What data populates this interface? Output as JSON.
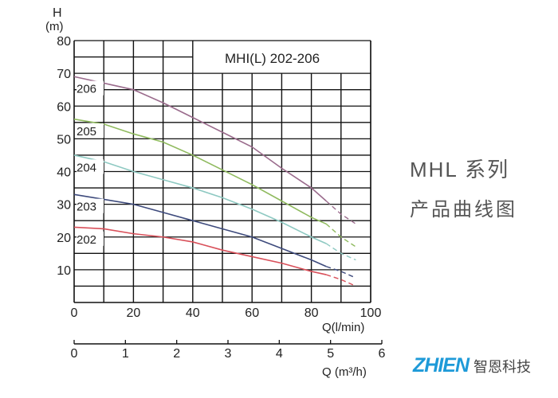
{
  "chart_data": {
    "type": "line",
    "title": "MHI(L) 202-206",
    "ylabel": "H",
    "yunit": "(m)",
    "xlabel": "Q(l/min)",
    "xlabel2": "Q (m³/h)",
    "xlim": [
      0,
      100
    ],
    "ylim": [
      0,
      80
    ],
    "x2lim": [
      0,
      6
    ],
    "xticks": [
      "0",
      "20",
      "40",
      "60",
      "80",
      "100"
    ],
    "yticks": [
      "10",
      "20",
      "30",
      "40",
      "50",
      "60",
      "70",
      "80"
    ],
    "x2ticks": [
      "0",
      "1",
      "2",
      "3",
      "4",
      "5",
      "6"
    ],
    "grid": true,
    "series": [
      {
        "name": "206",
        "color": "#9a6b8c",
        "x": [
          0,
          10,
          20,
          30,
          40,
          50,
          60,
          70,
          80,
          85,
          90,
          95
        ],
        "y": [
          69,
          67,
          65,
          61,
          56.5,
          52,
          47.5,
          41,
          35,
          31,
          27,
          24
        ]
      },
      {
        "name": "205",
        "color": "#8fba5e",
        "x": [
          0,
          10,
          20,
          30,
          40,
          50,
          60,
          70,
          80,
          85,
          90,
          95
        ],
        "y": [
          56,
          54.5,
          51.5,
          49,
          45,
          40.5,
          36,
          31,
          26,
          24,
          20,
          17
        ]
      },
      {
        "name": "204",
        "color": "#8ec9c2",
        "x": [
          0,
          10,
          20,
          30,
          40,
          50,
          60,
          70,
          80,
          85,
          90,
          95
        ],
        "y": [
          45,
          43,
          40,
          37.5,
          35,
          32,
          28.5,
          24.5,
          20,
          18,
          15,
          13
        ]
      },
      {
        "name": "203",
        "color": "#3d4a7c",
        "x": [
          0,
          10,
          20,
          30,
          40,
          50,
          60,
          70,
          80,
          85,
          90,
          95
        ],
        "y": [
          33,
          31.5,
          30,
          27.5,
          25,
          22.5,
          20,
          16.5,
          13,
          11,
          9.5,
          7.5
        ]
      },
      {
        "name": "202",
        "color": "#d9505a",
        "x": [
          0,
          10,
          20,
          30,
          40,
          50,
          60,
          70,
          80,
          85,
          90,
          95
        ],
        "y": [
          23,
          22.5,
          21,
          20,
          18.5,
          16,
          14,
          12,
          9.5,
          8.5,
          7,
          5
        ]
      }
    ],
    "dashed_from_x": 85
  },
  "side": {
    "line1": "MHL 系列",
    "line2": "产品曲线图"
  },
  "logo": {
    "en": "ZHIEN",
    "cn": "智恩科技"
  }
}
